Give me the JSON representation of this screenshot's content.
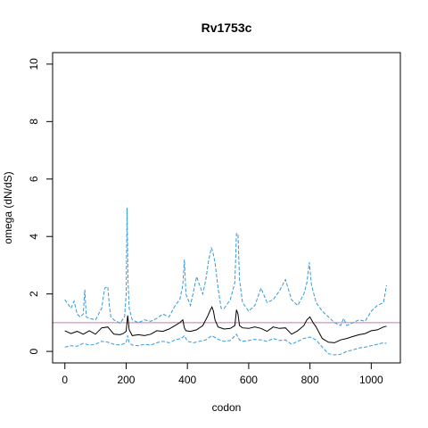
{
  "chart_data": {
    "type": "line",
    "title": "Rv1753c",
    "xlabel": "codon",
    "ylabel": "omega (dN/dS)",
    "xlim": [
      -40,
      1095
    ],
    "ylim": [
      -0.4,
      10.4
    ],
    "xticks": [
      0,
      200,
      400,
      600,
      800,
      1000
    ],
    "yticks": [
      0,
      2,
      4,
      6,
      8,
      10
    ],
    "grid": false,
    "legend": "none",
    "reference_line": {
      "y": 1.0,
      "color": "#cc79a7"
    },
    "colors": {
      "estimate": "#000000",
      "interval": "#3399dd"
    },
    "series": [
      {
        "role": "estimate",
        "style": "solid",
        "x": [
          0,
          20,
          40,
          60,
          80,
          100,
          120,
          140,
          160,
          180,
          190,
          200,
          205,
          210,
          220,
          240,
          260,
          280,
          300,
          320,
          340,
          360,
          375,
          385,
          390,
          395,
          410,
          430,
          450,
          465,
          475,
          480,
          485,
          490,
          500,
          520,
          540,
          555,
          560,
          565,
          570,
          580,
          600,
          620,
          640,
          660,
          680,
          700,
          720,
          740,
          760,
          780,
          790,
          800,
          810,
          820,
          840,
          860,
          880,
          900,
          920,
          940,
          960,
          980,
          1000,
          1020,
          1040,
          1050
        ],
        "values": [
          0.72,
          0.62,
          0.7,
          0.6,
          0.72,
          0.6,
          0.82,
          0.85,
          0.6,
          0.58,
          0.62,
          0.7,
          1.25,
          0.75,
          0.55,
          0.58,
          0.55,
          0.6,
          0.72,
          0.7,
          0.78,
          0.9,
          1.0,
          1.1,
          0.82,
          0.72,
          0.7,
          0.75,
          0.9,
          1.2,
          1.45,
          1.55,
          1.4,
          1.1,
          0.85,
          0.78,
          0.8,
          0.9,
          1.45,
          1.3,
          0.9,
          0.82,
          0.8,
          0.85,
          0.8,
          0.7,
          0.85,
          0.8,
          0.82,
          0.6,
          0.72,
          0.9,
          1.1,
          1.2,
          1.0,
          0.85,
          0.45,
          0.32,
          0.3,
          0.4,
          0.45,
          0.52,
          0.58,
          0.62,
          0.72,
          0.75,
          0.85,
          0.88
        ]
      },
      {
        "role": "upper",
        "style": "dashed",
        "x": [
          0,
          10,
          20,
          30,
          40,
          50,
          60,
          65,
          70,
          80,
          100,
          120,
          130,
          140,
          145,
          150,
          160,
          180,
          195,
          200,
          203,
          206,
          210,
          220,
          240,
          260,
          280,
          300,
          320,
          340,
          360,
          375,
          385,
          390,
          395,
          410,
          420,
          430,
          440,
          450,
          460,
          470,
          478,
          482,
          490,
          500,
          510,
          520,
          540,
          555,
          560,
          565,
          570,
          580,
          600,
          620,
          640,
          660,
          680,
          700,
          720,
          740,
          760,
          780,
          790,
          798,
          805,
          820,
          840,
          860,
          880,
          900,
          910,
          920,
          940,
          960,
          980,
          1000,
          1020,
          1040,
          1050
        ],
        "values": [
          1.8,
          1.65,
          1.5,
          1.75,
          1.3,
          1.2,
          1.3,
          2.15,
          1.2,
          1.15,
          1.1,
          1.5,
          2.2,
          2.25,
          1.6,
          1.2,
          1.1,
          0.98,
          1.2,
          2.0,
          5.0,
          2.5,
          1.5,
          1.1,
          1.0,
          1.1,
          1.05,
          1.15,
          1.3,
          1.2,
          1.6,
          1.8,
          2.3,
          3.2,
          2.0,
          1.6,
          2.1,
          2.6,
          2.3,
          2.0,
          2.5,
          3.2,
          3.6,
          3.5,
          3.1,
          2.2,
          1.5,
          1.5,
          1.8,
          2.4,
          4.1,
          4.1,
          2.5,
          1.7,
          1.4,
          1.6,
          2.2,
          1.7,
          1.8,
          2.1,
          2.5,
          1.8,
          1.6,
          2.0,
          2.4,
          3.1,
          2.3,
          1.7,
          1.4,
          1.2,
          1.0,
          0.9,
          1.15,
          0.9,
          1.0,
          1.1,
          1.05,
          1.4,
          1.6,
          1.7,
          2.3
        ]
      },
      {
        "role": "lower",
        "style": "dashed",
        "x": [
          0,
          20,
          40,
          60,
          80,
          100,
          120,
          140,
          160,
          180,
          200,
          205,
          210,
          220,
          240,
          260,
          280,
          300,
          320,
          340,
          360,
          380,
          390,
          400,
          420,
          440,
          460,
          480,
          500,
          520,
          540,
          560,
          570,
          580,
          600,
          620,
          640,
          660,
          680,
          700,
          720,
          740,
          760,
          780,
          800,
          820,
          840,
          860,
          880,
          900,
          920,
          940,
          960,
          980,
          1000,
          1020,
          1040,
          1050
        ],
        "values": [
          0.15,
          0.2,
          0.18,
          0.28,
          0.22,
          0.25,
          0.35,
          0.32,
          0.25,
          0.22,
          0.3,
          0.55,
          0.3,
          0.22,
          0.2,
          0.25,
          0.22,
          0.3,
          0.35,
          0.3,
          0.4,
          0.45,
          0.55,
          0.35,
          0.3,
          0.35,
          0.4,
          0.55,
          0.42,
          0.35,
          0.38,
          0.6,
          0.4,
          0.35,
          0.38,
          0.42,
          0.4,
          0.35,
          0.45,
          0.38,
          0.4,
          0.25,
          0.35,
          0.45,
          0.5,
          0.4,
          0.15,
          -0.08,
          -0.12,
          -0.1,
          0.0,
          0.05,
          0.12,
          0.15,
          0.2,
          0.25,
          0.3,
          0.28
        ]
      }
    ]
  }
}
